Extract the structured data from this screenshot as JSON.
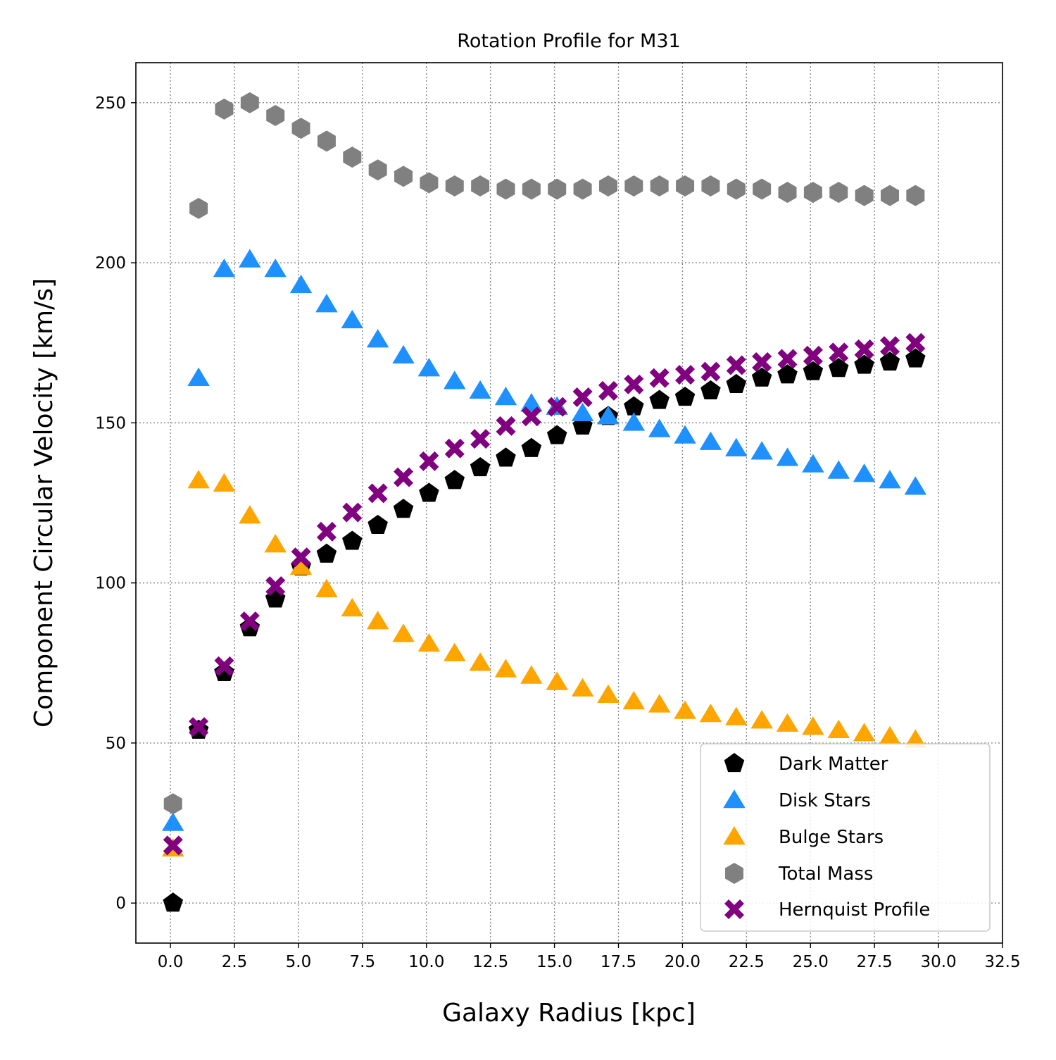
{
  "chart_data": {
    "type": "scatter",
    "title": "Rotation Profile for M31",
    "xlabel": "Galaxy Radius [kpc]",
    "ylabel": "Component Circular Velocity [km/s]",
    "xlim": [
      -1.35,
      32.5
    ],
    "ylim": [
      -12.5,
      262.5
    ],
    "xticks": [
      0,
      2.5,
      5,
      7.5,
      10,
      12.5,
      15,
      17.5,
      20,
      22.5,
      25,
      27.5,
      30,
      32.5
    ],
    "xtick_labels": [
      "0.0",
      "2.5",
      "5.0",
      "7.5",
      "10.0",
      "12.5",
      "15.0",
      "17.5",
      "20.0",
      "22.5",
      "25.0",
      "27.5",
      "30.0",
      "32.5"
    ],
    "yticks": [
      0,
      50,
      100,
      150,
      200,
      250
    ],
    "ytick_labels": [
      "0",
      "50",
      "100",
      "150",
      "200",
      "250"
    ],
    "grid": true,
    "legend_position": "lower-right",
    "x": [
      0.1,
      1.1,
      2.1,
      3.1,
      4.1,
      5.1,
      6.1,
      7.1,
      8.1,
      9.1,
      10.1,
      11.1,
      12.1,
      13.1,
      14.1,
      15.1,
      16.1,
      17.1,
      18.1,
      19.1,
      20.1,
      21.1,
      22.1,
      23.1,
      24.1,
      25.1,
      26.1,
      27.1,
      28.1,
      29.1
    ],
    "series": [
      {
        "name": "Dark Matter",
        "marker": "pentagon",
        "color": "#000000",
        "values": [
          0,
          54,
          72,
          86,
          95,
          105,
          109,
          113,
          118,
          123,
          128,
          132,
          136,
          139,
          142,
          146,
          149,
          152,
          155,
          157,
          158,
          160,
          162,
          164,
          165,
          166,
          167,
          168,
          169,
          170
        ]
      },
      {
        "name": "Disk Stars",
        "marker": "triangle",
        "color": "#1e90ff",
        "values": [
          25,
          164,
          198,
          201,
          198,
          193,
          187,
          182,
          176,
          171,
          167,
          163,
          160,
          158,
          156,
          155,
          153,
          152,
          150,
          148,
          146,
          144,
          142,
          141,
          139,
          137,
          135,
          134,
          132,
          130
        ]
      },
      {
        "name": "Bulge Stars",
        "marker": "triangle",
        "color": "#ffa500",
        "values": [
          17,
          132,
          131,
          121,
          112,
          105,
          98,
          92,
          88,
          84,
          81,
          78,
          75,
          73,
          71,
          69,
          67,
          65,
          63,
          62,
          60,
          59,
          58,
          57,
          56,
          55,
          54,
          53,
          52,
          51
        ]
      },
      {
        "name": "Total Mass",
        "marker": "hexagon",
        "color": "#808080",
        "values": [
          31,
          217,
          248,
          250,
          246,
          242,
          238,
          233,
          229,
          227,
          225,
          224,
          224,
          223,
          223,
          223,
          223,
          224,
          224,
          224,
          224,
          224,
          223,
          223,
          222,
          222,
          222,
          221,
          221,
          221
        ]
      },
      {
        "name": "Hernquist Profile",
        "marker": "x",
        "color": "#800080",
        "values": [
          18,
          55,
          74,
          88,
          99,
          108,
          116,
          122,
          128,
          133,
          138,
          142,
          145,
          149,
          152,
          155,
          158,
          160,
          162,
          164,
          165,
          166,
          168,
          169,
          170,
          171,
          172,
          173,
          174,
          175
        ]
      }
    ]
  }
}
